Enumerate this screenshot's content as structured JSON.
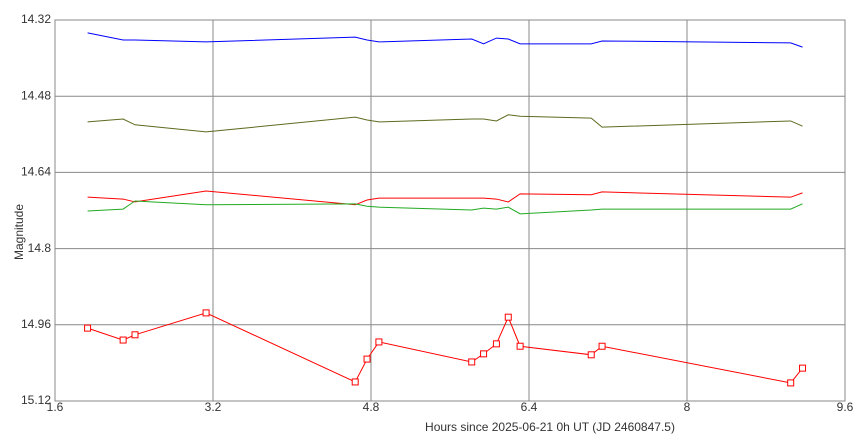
{
  "chart_data": {
    "type": "line",
    "x_label": "Hours since 2025-06-21 0h UT (JD 2460847.5)",
    "y_label": "Magnitude",
    "x": [
      1.93,
      2.29,
      2.41,
      3.13,
      4.64,
      4.76,
      4.88,
      5.82,
      5.94,
      6.07,
      6.19,
      6.31,
      7.03,
      7.14,
      9.05,
      9.17
    ],
    "series": [
      {
        "color": "#0000ff",
        "markers": false,
        "values": [
          14.347,
          14.362,
          14.362,
          14.366,
          14.356,
          14.362,
          14.366,
          14.36,
          14.37,
          14.358,
          14.36,
          14.37,
          14.37,
          14.364,
          14.368,
          14.377
        ]
      },
      {
        "color": "#5b6b1e",
        "markers": false,
        "values": [
          14.534,
          14.528,
          14.54,
          14.555,
          14.524,
          14.53,
          14.534,
          14.528,
          14.528,
          14.532,
          14.519,
          14.522,
          14.526,
          14.545,
          14.532,
          14.543
        ]
      },
      {
        "color": "#ff0000",
        "markers": false,
        "values": [
          14.692,
          14.696,
          14.702,
          14.679,
          14.708,
          14.698,
          14.694,
          14.694,
          14.694,
          14.696,
          14.702,
          14.685,
          14.687,
          14.681,
          14.692,
          14.683
        ]
      },
      {
        "color": "#22aa22",
        "markers": false,
        "values": [
          14.721,
          14.717,
          14.7,
          14.708,
          14.706,
          14.711,
          14.713,
          14.719,
          14.715,
          14.717,
          14.713,
          14.727,
          14.719,
          14.717,
          14.717,
          14.706
        ]
      },
      {
        "color": "#ff0000",
        "markers": true,
        "values": [
          14.967,
          14.992,
          14.981,
          14.935,
          15.08,
          15.032,
          14.996,
          15.038,
          15.021,
          15.0,
          14.944,
          15.005,
          15.023,
          15.005,
          15.082,
          15.051
        ]
      }
    ],
    "xlim": [
      1.6,
      9.6
    ],
    "xticks": [
      1.6,
      3.2,
      4.8,
      6.4,
      8,
      9.6
    ],
    "ylim": [
      15.12,
      14.32
    ],
    "yticks": [
      14.32,
      14.48,
      14.64,
      14.8,
      14.96,
      15.12
    ],
    "grid": true
  }
}
